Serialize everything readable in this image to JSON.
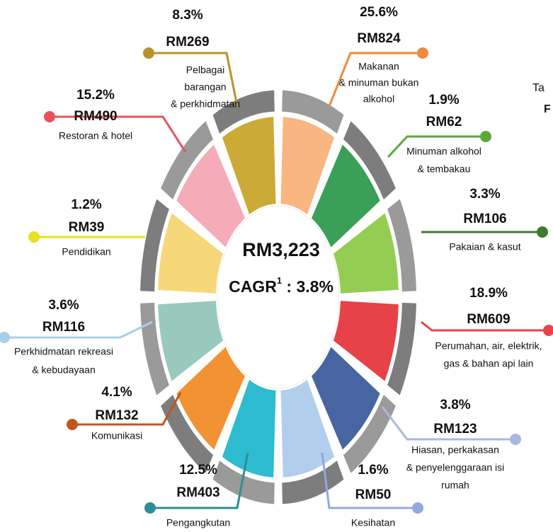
{
  "center": {
    "total": "RM3,223",
    "cagr_label": "CAGR",
    "cagr_note": "1",
    "cagr_value": " : 3.8%"
  },
  "edge_text": [
    "Ta",
    "F"
  ],
  "items": [
    {
      "percent": "25.6%",
      "amount": "RM824",
      "label": [
        "Makanan",
        "& minuman bukan",
        "alkohol"
      ],
      "color": "#f0883e",
      "fill": "#f9b27a"
    },
    {
      "percent": "1.9%",
      "amount": "RM62",
      "label": [
        "Minuman alkohol",
        "& tembakau"
      ],
      "color": "#5aa83c",
      "fill": "#2f9a4e"
    },
    {
      "percent": "3.3%",
      "amount": "RM106",
      "label": [
        "Pakaian & kasut"
      ],
      "color": "#3f7a2e",
      "fill": "#8fca4a"
    },
    {
      "percent": "18.9%",
      "amount": "RM609",
      "label": [
        "Perumahan, air, elektrik,",
        "gas & bahan api lain"
      ],
      "color": "#e8434a",
      "fill": "#e5383d"
    },
    {
      "percent": "3.8%",
      "amount": "RM123",
      "label": [
        "Hiasan, perkakasan",
        "& penyelenggaraan isi",
        "rumah"
      ],
      "color": "#aab8e0",
      "fill": "#3d5e9c"
    },
    {
      "percent": "1.6%",
      "amount": "RM50",
      "label": [
        "Kesihatan"
      ],
      "color": "#8fa8e0",
      "fill": "#aecbec"
    },
    {
      "percent": "12.5%",
      "amount": "RM403",
      "label": [
        "Pengangkutan"
      ],
      "color": "#2a8f95",
      "fill": "#22b8cc"
    },
    {
      "percent": "4.1%",
      "amount": "RM132",
      "label": [
        "Komunikasi"
      ],
      "color": "#c0561d",
      "fill": "#f28c28"
    },
    {
      "percent": "3.6%",
      "amount": "RM116",
      "label": [
        "Perkhidmatan rekreasi",
        "& kebudayaan"
      ],
      "color": "#a8cfe8",
      "fill": "#93c6b8"
    },
    {
      "percent": "1.2%",
      "amount": "RM39",
      "label": [
        "Pendidikan"
      ],
      "color": "#e8e020",
      "fill": "#f6d673"
    },
    {
      "percent": "15.2%",
      "amount": "RM490",
      "label": [
        "Restoran & hotel"
      ],
      "color": "#e8525e",
      "fill": "#f4a6b4"
    },
    {
      "percent": "8.3%",
      "amount": "RM269",
      "label": [
        "Pelbagai",
        "barangan",
        "& perkhidmatan"
      ],
      "color": "#b8922a",
      "fill": "#c9a52c"
    }
  ]
}
